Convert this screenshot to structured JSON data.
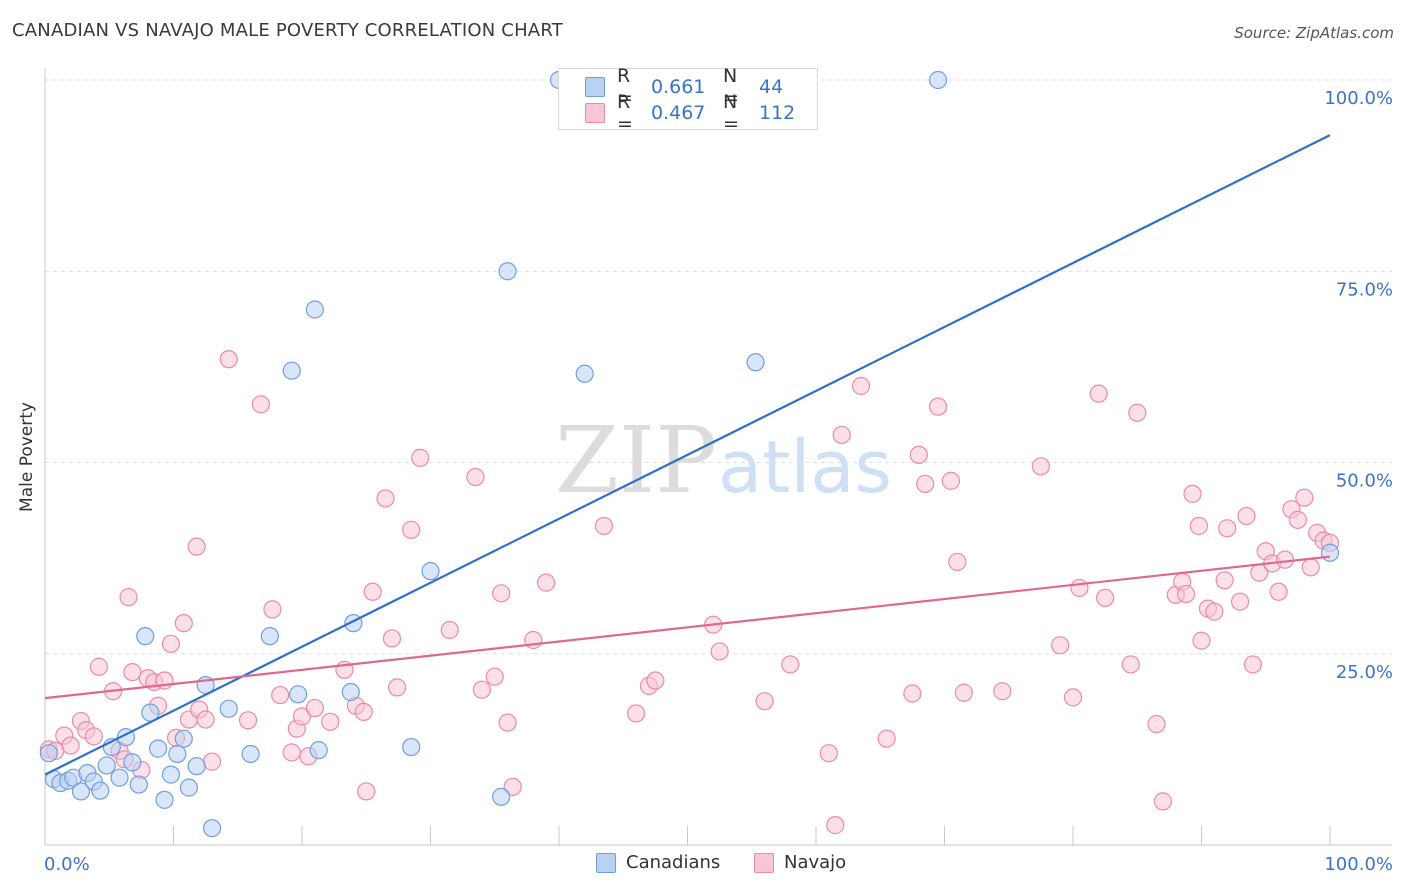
{
  "header": {
    "title": "CANADIAN VS NAVAJO MALE POVERTY CORRELATION CHART",
    "source": "Source: ZipAtlas.com"
  },
  "colors": {
    "canadians": "#6f9fde",
    "canadians_fill": "#b9d2f4",
    "navajo": "#ec8aa8",
    "navajo_fill": "#f8c6d5",
    "canadians_line": "#2f6fcc",
    "navajo_line": "#e0688f",
    "tick_label": "#3b73c6"
  },
  "legend_top": {
    "rows": [
      {
        "r_label": "R =",
        "r_value": "0.661",
        "n_label": "N =",
        "n_value": "44"
      },
      {
        "r_label": "R =",
        "r_value": "0.467",
        "n_label": "N =",
        "n_value": "112"
      }
    ]
  },
  "legend_bottom": {
    "items": [
      "Canadians",
      "Navajo"
    ]
  },
  "watermark": {
    "part1": "ZIP",
    "part2": "atlas"
  },
  "chart_data": {
    "type": "scatter",
    "title": "CANADIAN VS NAVAJO MALE POVERTY CORRELATION CHART",
    "xlabel": "",
    "ylabel": "Male Poverty",
    "xlim": [
      0,
      100
    ],
    "ylim": [
      0,
      100
    ],
    "x_tick_labels": [
      "0.0%",
      "100.0%"
    ],
    "y_tick_labels": [
      "25.0%",
      "50.0%",
      "75.0%",
      "100.0%"
    ],
    "y_ticks": [
      25,
      50,
      75,
      100
    ],
    "grid": true,
    "series": [
      {
        "name": "Canadians",
        "r": 0.661,
        "n": 44,
        "trend": [
          [
            0,
            9.2
          ],
          [
            100,
            92.8
          ]
        ],
        "points": [
          [
            0.3,
            12.0
          ],
          [
            0.7,
            8.6
          ],
          [
            1.2,
            8.1
          ],
          [
            1.8,
            8.4
          ],
          [
            2.2,
            8.8
          ],
          [
            2.8,
            7.0
          ],
          [
            3.3,
            9.4
          ],
          [
            3.8,
            8.3
          ],
          [
            4.3,
            7.1
          ],
          [
            4.8,
            10.4
          ],
          [
            5.2,
            12.8
          ],
          [
            5.8,
            8.8
          ],
          [
            6.3,
            14.1
          ],
          [
            6.8,
            10.8
          ],
          [
            7.3,
            7.9
          ],
          [
            7.8,
            27.3
          ],
          [
            8.2,
            17.3
          ],
          [
            8.8,
            12.6
          ],
          [
            9.3,
            5.9
          ],
          [
            9.8,
            9.2
          ],
          [
            10.3,
            11.9
          ],
          [
            10.8,
            13.9
          ],
          [
            11.2,
            7.5
          ],
          [
            11.8,
            10.3
          ],
          [
            12.5,
            20.9
          ],
          [
            13.0,
            2.2
          ],
          [
            14.3,
            17.8
          ],
          [
            16.0,
            11.9
          ],
          [
            17.5,
            27.3
          ],
          [
            19.2,
            62.0
          ],
          [
            19.7,
            19.7
          ],
          [
            21.0,
            70.0
          ],
          [
            21.3,
            12.4
          ],
          [
            23.8,
            20.0
          ],
          [
            24.0,
            29.0
          ],
          [
            30.0,
            35.8
          ],
          [
            28.5,
            12.8
          ],
          [
            35.5,
            6.3
          ],
          [
            36.0,
            75.0
          ],
          [
            40.0,
            100.0
          ],
          [
            42.0,
            61.6
          ],
          [
            55.3,
            63.1
          ],
          [
            69.5,
            100.0
          ],
          [
            100.0,
            38.2
          ]
        ]
      },
      {
        "name": "Navajo",
        "r": 0.467,
        "n": 112,
        "trend": [
          [
            0,
            19.2
          ],
          [
            100,
            37.7
          ]
        ],
        "points": [
          [
            0.3,
            12.5
          ],
          [
            0.8,
            12.3
          ],
          [
            1.5,
            14.3
          ],
          [
            2.0,
            13.0
          ],
          [
            2.8,
            16.2
          ],
          [
            3.2,
            15.0
          ],
          [
            3.8,
            14.2
          ],
          [
            4.2,
            23.3
          ],
          [
            5.3,
            20.1
          ],
          [
            5.8,
            12.3
          ],
          [
            6.2,
            11.2
          ],
          [
            6.5,
            32.4
          ],
          [
            6.8,
            22.6
          ],
          [
            7.5,
            9.8
          ],
          [
            8.0,
            21.8
          ],
          [
            8.5,
            21.3
          ],
          [
            8.8,
            18.2
          ],
          [
            9.3,
            21.5
          ],
          [
            9.8,
            26.3
          ],
          [
            10.2,
            14.0
          ],
          [
            10.8,
            29.0
          ],
          [
            11.2,
            16.4
          ],
          [
            11.8,
            39.0
          ],
          [
            12.0,
            17.7
          ],
          [
            12.5,
            16.4
          ],
          [
            13.0,
            10.9
          ],
          [
            14.3,
            63.5
          ],
          [
            15.8,
            16.3
          ],
          [
            16.8,
            57.6
          ],
          [
            17.7,
            30.8
          ],
          [
            18.3,
            19.6
          ],
          [
            19.2,
            12.1
          ],
          [
            19.6,
            15.2
          ],
          [
            20.0,
            16.8
          ],
          [
            20.5,
            11.6
          ],
          [
            21.0,
            17.9
          ],
          [
            22.2,
            16.1
          ],
          [
            23.3,
            22.9
          ],
          [
            24.2,
            18.2
          ],
          [
            24.8,
            17.4
          ],
          [
            25.0,
            7.0
          ],
          [
            25.5,
            33.1
          ],
          [
            26.5,
            45.3
          ],
          [
            27.0,
            27.0
          ],
          [
            27.4,
            20.6
          ],
          [
            28.5,
            41.2
          ],
          [
            29.2,
            50.6
          ],
          [
            31.5,
            28.1
          ],
          [
            33.5,
            48.1
          ],
          [
            34.0,
            20.3
          ],
          [
            35.0,
            22.0
          ],
          [
            35.5,
            32.9
          ],
          [
            36.0,
            16.0
          ],
          [
            36.4,
            7.6
          ],
          [
            38.0,
            26.8
          ],
          [
            39.0,
            34.3
          ],
          [
            43.5,
            41.7
          ],
          [
            46.0,
            17.2
          ],
          [
            47.0,
            20.8
          ],
          [
            47.5,
            21.5
          ],
          [
            52.0,
            28.8
          ],
          [
            52.5,
            25.3
          ],
          [
            56.0,
            18.8
          ],
          [
            58.0,
            23.6
          ],
          [
            61.0,
            12.0
          ],
          [
            61.5,
            2.6
          ],
          [
            62.0,
            53.6
          ],
          [
            63.5,
            60.0
          ],
          [
            65.5,
            13.9
          ],
          [
            67.5,
            19.8
          ],
          [
            68.0,
            51.0
          ],
          [
            68.5,
            47.2
          ],
          [
            69.5,
            57.3
          ],
          [
            70.5,
            47.6
          ],
          [
            71.5,
            19.9
          ],
          [
            71.0,
            37.0
          ],
          [
            74.5,
            20.1
          ],
          [
            77.5,
            49.5
          ],
          [
            79.0,
            26.1
          ],
          [
            80.0,
            19.3
          ],
          [
            80.5,
            33.6
          ],
          [
            82.0,
            59.0
          ],
          [
            82.5,
            32.3
          ],
          [
            84.5,
            23.6
          ],
          [
            85.0,
            56.5
          ],
          [
            86.5,
            15.8
          ],
          [
            87.0,
            5.7
          ],
          [
            88.0,
            32.7
          ],
          [
            88.5,
            34.4
          ],
          [
            88.8,
            32.8
          ],
          [
            89.3,
            45.9
          ],
          [
            89.8,
            41.7
          ],
          [
            90.0,
            26.7
          ],
          [
            90.5,
            30.9
          ],
          [
            91.0,
            30.5
          ],
          [
            91.8,
            34.6
          ],
          [
            92.0,
            41.4
          ],
          [
            93.0,
            31.8
          ],
          [
            93.5,
            43.0
          ],
          [
            94.0,
            23.6
          ],
          [
            94.5,
            35.6
          ],
          [
            95.0,
            38.4
          ],
          [
            95.5,
            36.8
          ],
          [
            96.0,
            33.1
          ],
          [
            96.5,
            37.3
          ],
          [
            97.0,
            43.9
          ],
          [
            97.5,
            42.5
          ],
          [
            98.0,
            45.4
          ],
          [
            98.5,
            36.3
          ],
          [
            99.0,
            40.8
          ],
          [
            99.5,
            39.8
          ],
          [
            100.0,
            39.5
          ]
        ]
      }
    ]
  }
}
